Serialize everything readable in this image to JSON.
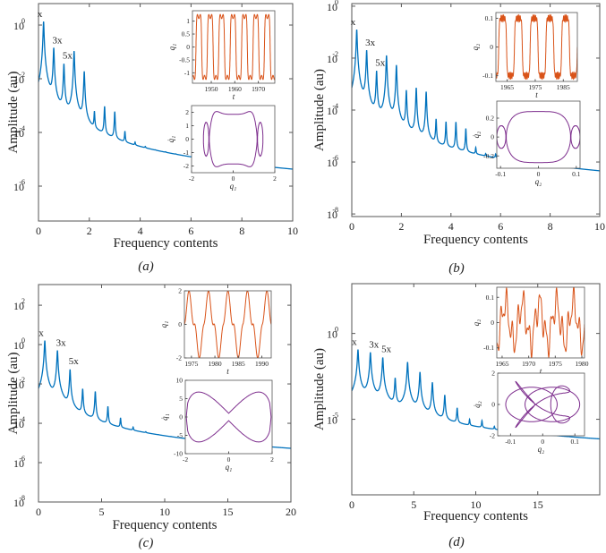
{
  "colors": {
    "spectrum": "#0072BD",
    "time_series": "#D95319",
    "phase": "#7E2F8E",
    "axes": "#555555"
  },
  "chart_data": [
    {
      "type": "line",
      "panel_label": "(a)",
      "yscale": "log",
      "xlabel": "Frequency contents",
      "ylabel": "Amplitude (au)",
      "xlim": [
        0,
        10
      ],
      "ylim_log10": [
        -7.3,
        0.8
      ],
      "x_ticks": [
        0,
        2,
        4,
        6,
        8,
        10
      ],
      "y_tick_base": "10",
      "y_tick_exponents": [
        0,
        -2,
        -4,
        -6
      ],
      "peaks": [
        [
          0.2,
          0.13
        ],
        [
          0.6,
          -0.85
        ],
        [
          1.0,
          -1.45
        ],
        [
          1.4,
          -0.97
        ],
        [
          1.8,
          -1.73
        ],
        [
          2.2,
          -3.33
        ],
        [
          2.6,
          -3.07
        ],
        [
          3.0,
          -3.27
        ],
        [
          3.4,
          -4.17
        ],
        [
          3.8,
          -5.0
        ],
        [
          4.2,
          -5.5
        ],
        [
          4.6,
          -6.3
        ],
        [
          5.0,
          -6.1
        ],
        [
          5.4,
          -6.4
        ]
      ],
      "baseline": [
        [
          0,
          -6.7
        ],
        [
          0.1,
          -5.4
        ],
        [
          0.5,
          -5.4
        ],
        [
          0.9,
          -5.6
        ],
        [
          1.1,
          -5.2
        ],
        [
          1.3,
          -5.1
        ],
        [
          1.65,
          -5.8
        ],
        [
          2.0,
          -5.9
        ],
        [
          2.5,
          -6.0
        ],
        [
          3.5,
          -6.05
        ],
        [
          6,
          -6.3
        ],
        [
          10,
          -6.55
        ]
      ],
      "annotations": [
        {
          "text": "x",
          "peak": 0
        },
        {
          "text": "3x",
          "peak": 1
        },
        {
          "text": "5x",
          "peak": 2
        }
      ],
      "insets": [
        {
          "type": "line",
          "xlabel": "t",
          "ylabel": "q₁",
          "xlim": [
            1942,
            1977
          ],
          "ylim": [
            -1.4,
            1.4
          ],
          "x_ticks": [
            1950,
            1960,
            1970
          ],
          "y_ticks": [
            -1,
            -0.5,
            0,
            0.5,
            1
          ]
        },
        {
          "type": "phase",
          "xlabel": "q₁",
          "ylabel": "q̇₁",
          "xlim": [
            -2,
            2
          ],
          "ylim": [
            -2.5,
            2.5
          ],
          "x_ticks": [
            -2,
            0,
            2
          ],
          "y_ticks": [
            -2,
            -1,
            0,
            1,
            2
          ]
        }
      ]
    },
    {
      "type": "line",
      "panel_label": "(b)",
      "yscale": "log",
      "xlabel": "Frequency contents",
      "ylabel": "Amplitude (au)",
      "xlim": [
        0,
        10
      ],
      "ylim_log10": [
        -8.1,
        0.1
      ],
      "x_ticks": [
        0,
        2,
        4,
        6,
        8,
        10
      ],
      "y_tick_base": "10",
      "y_tick_exponents": [
        0,
        -2,
        -4,
        -6,
        -8
      ],
      "peaks": [
        [
          0.2,
          -0.9
        ],
        [
          0.6,
          -1.7
        ],
        [
          1.0,
          -2.5
        ],
        [
          1.4,
          -1.9
        ],
        [
          1.8,
          -2.27
        ],
        [
          2.2,
          -3.25
        ],
        [
          2.6,
          -3.15
        ],
        [
          3.0,
          -3.3
        ],
        [
          3.4,
          -4.4
        ],
        [
          3.8,
          -4.5
        ],
        [
          4.2,
          -4.5
        ],
        [
          4.6,
          -4.77
        ],
        [
          5.0,
          -5.8
        ],
        [
          5.4,
          -6.4
        ],
        [
          5.8,
          -6.25
        ],
        [
          6.2,
          -6.6
        ],
        [
          6.6,
          -6.9
        ]
      ],
      "baseline": [
        [
          0,
          -7.0
        ],
        [
          0.1,
          -6.0
        ],
        [
          0.5,
          -6.7
        ],
        [
          0.9,
          -6.5
        ],
        [
          1.2,
          -7.2
        ],
        [
          1.6,
          -6.1
        ],
        [
          1.9,
          -7.9
        ],
        [
          2.1,
          -7.0
        ],
        [
          2.4,
          -6.6
        ],
        [
          2.8,
          -7.3
        ],
        [
          3.2,
          -6.9
        ],
        [
          6,
          -7.0
        ],
        [
          10,
          -7.4
        ]
      ],
      "annotations": [
        {
          "text": "x",
          "peak": 0
        },
        {
          "text": "3x",
          "peak": 1
        },
        {
          "text": "5x",
          "peak": 2
        }
      ],
      "insets": [
        {
          "type": "line",
          "xlabel": "t",
          "ylabel": "q₂",
          "xlim": [
            1961,
            1990
          ],
          "ylim": [
            -0.12,
            0.12
          ],
          "x_ticks": [
            1965,
            1975,
            1985
          ],
          "y_ticks": [
            -0.1,
            0,
            0.1
          ]
        },
        {
          "type": "phase",
          "xlabel": "q₂",
          "ylabel": "q̇₂",
          "xlim": [
            -0.11,
            0.11
          ],
          "ylim": [
            -0.33,
            0.38
          ],
          "x_ticks": [
            -0.1,
            0,
            0.1
          ],
          "y_ticks": [
            -0.2,
            0,
            0.2
          ]
        }
      ]
    },
    {
      "type": "line",
      "panel_label": "(c)",
      "yscale": "log",
      "xlabel": "Frequency contents",
      "ylabel": "Amplitude (au)",
      "xlim": [
        0,
        20
      ],
      "ylim_log10": [
        -8,
        3.05
      ],
      "x_ticks": [
        0,
        5,
        10,
        15,
        20
      ],
      "y_tick_base": "10",
      "y_tick_exponents": [
        2,
        0,
        -2,
        -4,
        -6,
        -8
      ],
      "peaks": [
        [
          0.5,
          0.2
        ],
        [
          1.5,
          -0.3
        ],
        [
          2.5,
          -1.27
        ],
        [
          3.5,
          -2.27
        ],
        [
          4.5,
          -2.4
        ],
        [
          5.5,
          -3.2
        ],
        [
          6.5,
          -3.9
        ],
        [
          7.5,
          -4.7
        ],
        [
          8.5,
          -5.4
        ],
        [
          9.5,
          -6.3
        ],
        [
          10.5,
          -6.4
        ],
        [
          11.5,
          -6.6
        ],
        [
          12.5,
          -6.75
        ],
        [
          13.5,
          -6.8
        ],
        [
          14.5,
          -6.85
        ]
      ],
      "baseline": [
        [
          0,
          -6.5
        ],
        [
          0.3,
          -5.2
        ],
        [
          1.0,
          -4.9
        ],
        [
          2.0,
          -5.2
        ],
        [
          3.0,
          -6.3
        ],
        [
          3.8,
          -6.9
        ],
        [
          4.2,
          -7.2
        ],
        [
          5.0,
          -6.2
        ],
        [
          5.6,
          -6.7
        ],
        [
          6.5,
          -6.6
        ],
        [
          10,
          -6.8
        ],
        [
          20,
          -7.1
        ]
      ],
      "annotations": [
        {
          "text": "x",
          "peak": 0
        },
        {
          "text": "3x",
          "peak": 1
        },
        {
          "text": "5x",
          "peak": 2
        }
      ],
      "insets": [
        {
          "type": "line",
          "xlabel": "t",
          "ylabel": "q₁",
          "xlim": [
            1973.5,
            1992
          ],
          "ylim": [
            -2,
            2
          ],
          "x_ticks": [
            1975,
            1980,
            1985,
            1990
          ],
          "y_ticks": [
            -2,
            0,
            2
          ]
        },
        {
          "type": "phase",
          "xlabel": "q₁",
          "ylabel": "q̇₁",
          "xlim": [
            -2,
            2
          ],
          "ylim": [
            -10,
            10
          ],
          "x_ticks": [
            -2,
            0,
            2
          ],
          "y_ticks": [
            -10,
            -5,
            0,
            5,
            10
          ]
        }
      ]
    },
    {
      "type": "line",
      "panel_label": "(d)",
      "yscale": "log",
      "xlabel": "Frequency contents",
      "ylabel": "Amplitude (au)",
      "xlim": [
        0,
        20
      ],
      "ylim_log10": [
        -9.4,
        2.9
      ],
      "x_ticks": [
        0,
        5,
        10,
        15
      ],
      "y_tick_base": "10",
      "y_tick_exponents": [
        0,
        -5
      ],
      "peaks": [
        [
          0.5,
          -0.94
        ],
        [
          1.5,
          -1.1
        ],
        [
          2.5,
          -1.4
        ],
        [
          3.5,
          -2.6
        ],
        [
          4.5,
          -1.67
        ],
        [
          5.5,
          -2.25
        ],
        [
          6.5,
          -2.85
        ],
        [
          7.5,
          -3.6
        ],
        [
          8.5,
          -4.4
        ],
        [
          9.5,
          -5.26
        ],
        [
          10.5,
          -5.3
        ],
        [
          11.5,
          -5.9
        ],
        [
          12.5,
          -6.56
        ],
        [
          13.5,
          -7.4
        ],
        [
          14.5,
          -7.3
        ],
        [
          15.5,
          -7.6
        ],
        [
          16.5,
          -7.6
        ],
        [
          17.5,
          -7.9
        ]
      ],
      "baseline": [
        [
          0,
          -7.3
        ],
        [
          0.5,
          -6.3
        ],
        [
          1.0,
          -7.1
        ],
        [
          1.5,
          -5.8
        ],
        [
          2.5,
          -6.0
        ],
        [
          3.0,
          -6.8
        ],
        [
          3.5,
          -6.6
        ],
        [
          4.5,
          -5.9
        ],
        [
          5.0,
          -6.4
        ],
        [
          6.0,
          -6.9
        ],
        [
          7.4,
          -6.9
        ],
        [
          7.7,
          -8.0
        ],
        [
          8.1,
          -7.8
        ],
        [
          8.6,
          -7.7
        ],
        [
          10,
          -7.9
        ],
        [
          20,
          -8.4
        ]
      ],
      "annotations": [
        {
          "text": "x",
          "peak": 0
        },
        {
          "text": "3x",
          "peak": 1
        },
        {
          "text": "5x",
          "peak": 2
        }
      ],
      "insets": [
        {
          "type": "line",
          "xlabel": "t",
          "ylabel": "q₂",
          "xlim": [
            1964,
            1980.5
          ],
          "ylim": [
            -0.14,
            0.14
          ],
          "x_ticks": [
            1965,
            1970,
            1975,
            1980
          ],
          "y_ticks": [
            -0.1,
            0,
            0.1
          ]
        },
        {
          "type": "phase",
          "xlabel": "q₂",
          "ylabel": "q̇₂",
          "xlim": [
            -0.14,
            0.13
          ],
          "ylim": [
            -2,
            2
          ],
          "x_ticks": [
            -0.1,
            0,
            0.1
          ],
          "y_ticks": [
            -2,
            0,
            2
          ]
        }
      ]
    }
  ]
}
